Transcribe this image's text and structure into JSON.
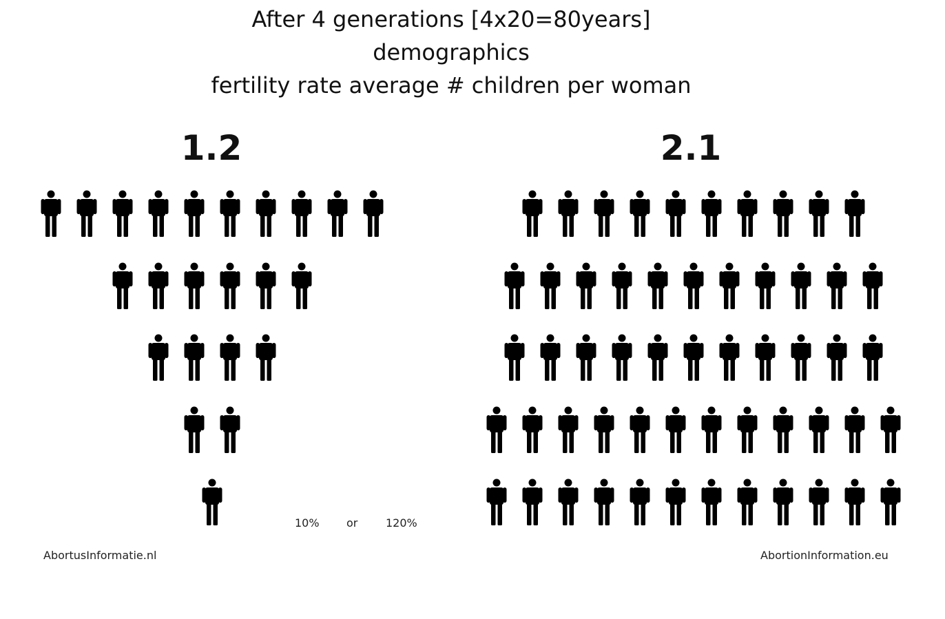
{
  "title": {
    "line1": "After 4 generations [4x20=80years]",
    "line2": "demographics",
    "line3": "fertility rate average # children per woman"
  },
  "left": {
    "rate": "1.2",
    "rows": [
      10,
      6,
      4,
      2,
      1
    ]
  },
  "right": {
    "rate": "2.1",
    "rows": [
      10,
      11,
      11,
      12,
      12
    ]
  },
  "annotation": {
    "percent_left": "10%",
    "or_word": "or",
    "percent_right": "120%"
  },
  "footer": {
    "left_site": "AbortusInformatie.nl",
    "right_site": "AbortionInformation.eu"
  },
  "icon": "person-icon",
  "icon_color": "#000000"
}
